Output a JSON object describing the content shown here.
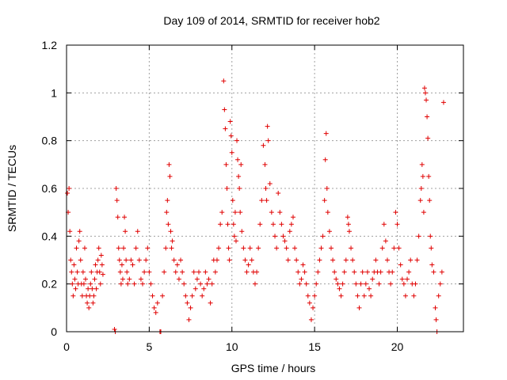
{
  "chart_data": {
    "type": "scatter",
    "title": "Day 109 of 2014, SRMTID for receiver hob2",
    "xlabel": "GPS time / hours",
    "ylabel": "SRMTID / TECUs",
    "xlim": [
      0,
      24
    ],
    "ylim": [
      0,
      1.2
    ],
    "x_ticks": [
      0,
      5,
      10,
      15,
      20
    ],
    "x_tick_labels": [
      "0",
      "5",
      "10",
      "15",
      "20"
    ],
    "y_ticks": [
      0,
      0.2,
      0.4,
      0.6,
      0.8,
      1,
      1.2
    ],
    "y_tick_labels": [
      "0",
      "0.2",
      "0.4",
      "0.6",
      "0.8",
      "1",
      "1.2"
    ],
    "grid": true,
    "marker": "+",
    "marker_color": "#e00000",
    "series": [
      {
        "name": "SRMTID",
        "points": [
          [
            0.05,
            0.58
          ],
          [
            0.1,
            0.5
          ],
          [
            0.15,
            0.6
          ],
          [
            0.2,
            0.42
          ],
          [
            0.25,
            0.3
          ],
          [
            0.3,
            0.25
          ],
          [
            0.35,
            0.2
          ],
          [
            0.4,
            0.15
          ],
          [
            0.45,
            0.28
          ],
          [
            0.5,
            0.22
          ],
          [
            0.55,
            0.18
          ],
          [
            0.6,
            0.35
          ],
          [
            0.65,
            0.25
          ],
          [
            0.7,
            0.2
          ],
          [
            0.75,
            0.38
          ],
          [
            0.8,
            0.42
          ],
          [
            0.85,
            0.3
          ],
          [
            0.9,
            0.2
          ],
          [
            0.95,
            0.15
          ],
          [
            1.0,
            0.25
          ],
          [
            1.05,
            0.2
          ],
          [
            1.1,
            0.35
          ],
          [
            1.15,
            0.22
          ],
          [
            1.2,
            0.15
          ],
          [
            1.25,
            0.12
          ],
          [
            1.3,
            0.18
          ],
          [
            1.35,
            0.1
          ],
          [
            1.4,
            0.15
          ],
          [
            1.45,
            0.2
          ],
          [
            1.5,
            0.25
          ],
          [
            1.55,
            0.18
          ],
          [
            1.6,
            0.12
          ],
          [
            1.65,
            0.15
          ],
          [
            1.7,
            0.22
          ],
          [
            1.75,
            0.28
          ],
          [
            1.8,
            0.18
          ],
          [
            1.85,
            0.25
          ],
          [
            1.9,
            0.3
          ],
          [
            1.95,
            0.35
          ],
          [
            2.0,
            0.25
          ],
          [
            2.05,
            0.2
          ],
          [
            2.1,
            0.32
          ],
          [
            2.15,
            0.28
          ],
          [
            2.2,
            0.24
          ],
          [
            2.9,
            0.01
          ],
          [
            2.95,
            0.0
          ],
          [
            3.0,
            0.6
          ],
          [
            3.05,
            0.55
          ],
          [
            3.1,
            0.48
          ],
          [
            3.15,
            0.35
          ],
          [
            3.2,
            0.3
          ],
          [
            3.25,
            0.25
          ],
          [
            3.3,
            0.2
          ],
          [
            3.35,
            0.28
          ],
          [
            3.4,
            0.22
          ],
          [
            3.45,
            0.35
          ],
          [
            3.5,
            0.48
          ],
          [
            3.55,
            0.42
          ],
          [
            3.6,
            0.3
          ],
          [
            3.65,
            0.25
          ],
          [
            3.7,
            0.2
          ],
          [
            3.8,
            0.22
          ],
          [
            3.9,
            0.3
          ],
          [
            4.0,
            0.28
          ],
          [
            4.1,
            0.2
          ],
          [
            4.2,
            0.35
          ],
          [
            4.3,
            0.42
          ],
          [
            4.4,
            0.3
          ],
          [
            4.5,
            0.22
          ],
          [
            4.6,
            0.2
          ],
          [
            4.7,
            0.25
          ],
          [
            4.8,
            0.3
          ],
          [
            4.9,
            0.35
          ],
          [
            5.0,
            0.25
          ],
          [
            5.1,
            0.2
          ],
          [
            5.2,
            0.15
          ],
          [
            5.3,
            0.1
          ],
          [
            5.4,
            0.08
          ],
          [
            5.5,
            0.12
          ],
          [
            5.65,
            0.0
          ],
          [
            5.7,
            0.0
          ],
          [
            5.8,
            0.15
          ],
          [
            5.9,
            0.25
          ],
          [
            6.0,
            0.35
          ],
          [
            6.05,
            0.5
          ],
          [
            6.1,
            0.55
          ],
          [
            6.15,
            0.45
          ],
          [
            6.2,
            0.7
          ],
          [
            6.25,
            0.65
          ],
          [
            6.3,
            0.42
          ],
          [
            6.35,
            0.35
          ],
          [
            6.4,
            0.38
          ],
          [
            6.5,
            0.3
          ],
          [
            6.6,
            0.25
          ],
          [
            6.7,
            0.28
          ],
          [
            6.8,
            0.22
          ],
          [
            6.9,
            0.3
          ],
          [
            7.0,
            0.25
          ],
          [
            7.1,
            0.2
          ],
          [
            7.2,
            0.15
          ],
          [
            7.3,
            0.12
          ],
          [
            7.4,
            0.05
          ],
          [
            7.5,
            0.1
          ],
          [
            7.6,
            0.15
          ],
          [
            7.7,
            0.25
          ],
          [
            7.8,
            0.18
          ],
          [
            7.9,
            0.22
          ],
          [
            8.0,
            0.25
          ],
          [
            8.1,
            0.2
          ],
          [
            8.2,
            0.15
          ],
          [
            8.3,
            0.18
          ],
          [
            8.4,
            0.25
          ],
          [
            8.5,
            0.2
          ],
          [
            8.6,
            0.22
          ],
          [
            8.7,
            0.12
          ],
          [
            8.8,
            0.2
          ],
          [
            8.9,
            0.3
          ],
          [
            9.0,
            0.25
          ],
          [
            9.1,
            0.3
          ],
          [
            9.2,
            0.35
          ],
          [
            9.3,
            0.45
          ],
          [
            9.4,
            0.5
          ],
          [
            9.5,
            1.05
          ],
          [
            9.55,
            0.93
          ],
          [
            9.6,
            0.85
          ],
          [
            9.65,
            0.7
          ],
          [
            9.7,
            0.6
          ],
          [
            9.75,
            0.45
          ],
          [
            9.8,
            0.35
          ],
          [
            9.85,
            0.3
          ],
          [
            9.9,
            0.88
          ],
          [
            9.95,
            0.82
          ],
          [
            10.0,
            0.75
          ],
          [
            10.05,
            0.55
          ],
          [
            10.1,
            0.45
          ],
          [
            10.15,
            0.4
          ],
          [
            10.2,
            0.5
          ],
          [
            10.25,
            0.38
          ],
          [
            10.3,
            0.8
          ],
          [
            10.35,
            0.72
          ],
          [
            10.4,
            0.65
          ],
          [
            10.45,
            0.6
          ],
          [
            10.5,
            0.5
          ],
          [
            10.55,
            0.7
          ],
          [
            10.6,
            0.42
          ],
          [
            10.7,
            0.35
          ],
          [
            10.8,
            0.3
          ],
          [
            10.9,
            0.25
          ],
          [
            11.0,
            0.28
          ],
          [
            11.1,
            0.35
          ],
          [
            11.2,
            0.3
          ],
          [
            11.3,
            0.25
          ],
          [
            11.4,
            0.2
          ],
          [
            11.5,
            0.25
          ],
          [
            11.6,
            0.35
          ],
          [
            11.7,
            0.45
          ],
          [
            11.8,
            0.55
          ],
          [
            11.9,
            0.78
          ],
          [
            12.0,
            0.7
          ],
          [
            12.05,
            0.6
          ],
          [
            12.1,
            0.55
          ],
          [
            12.15,
            0.86
          ],
          [
            12.2,
            0.8
          ],
          [
            12.3,
            0.62
          ],
          [
            12.4,
            0.5
          ],
          [
            12.5,
            0.45
          ],
          [
            12.6,
            0.4
          ],
          [
            12.7,
            0.35
          ],
          [
            12.8,
            0.58
          ],
          [
            12.9,
            0.5
          ],
          [
            13.0,
            0.45
          ],
          [
            13.1,
            0.4
          ],
          [
            13.2,
            0.38
          ],
          [
            13.3,
            0.35
          ],
          [
            13.4,
            0.3
          ],
          [
            13.5,
            0.42
          ],
          [
            13.6,
            0.45
          ],
          [
            13.7,
            0.48
          ],
          [
            13.8,
            0.35
          ],
          [
            13.9,
            0.3
          ],
          [
            14.0,
            0.25
          ],
          [
            14.1,
            0.2
          ],
          [
            14.2,
            0.22
          ],
          [
            14.3,
            0.28
          ],
          [
            14.4,
            0.25
          ],
          [
            14.5,
            0.2
          ],
          [
            14.6,
            0.15
          ],
          [
            14.7,
            0.12
          ],
          [
            14.8,
            0.05
          ],
          [
            14.9,
            0.1
          ],
          [
            15.0,
            0.15
          ],
          [
            15.1,
            0.2
          ],
          [
            15.2,
            0.25
          ],
          [
            15.3,
            0.3
          ],
          [
            15.4,
            0.35
          ],
          [
            15.5,
            0.4
          ],
          [
            15.6,
            0.55
          ],
          [
            15.65,
            0.72
          ],
          [
            15.7,
            0.83
          ],
          [
            15.75,
            0.6
          ],
          [
            15.8,
            0.5
          ],
          [
            15.9,
            0.42
          ],
          [
            16.0,
            0.35
          ],
          [
            16.1,
            0.3
          ],
          [
            16.2,
            0.25
          ],
          [
            16.3,
            0.22
          ],
          [
            16.4,
            0.2
          ],
          [
            16.5,
            0.18
          ],
          [
            16.6,
            0.15
          ],
          [
            16.7,
            0.2
          ],
          [
            16.8,
            0.25
          ],
          [
            16.9,
            0.3
          ],
          [
            17.0,
            0.48
          ],
          [
            17.05,
            0.45
          ],
          [
            17.1,
            0.42
          ],
          [
            17.2,
            0.35
          ],
          [
            17.3,
            0.3
          ],
          [
            17.4,
            0.25
          ],
          [
            17.5,
            0.2
          ],
          [
            17.6,
            0.15
          ],
          [
            17.7,
            0.1
          ],
          [
            17.8,
            0.2
          ],
          [
            17.9,
            0.25
          ],
          [
            18.0,
            0.15
          ],
          [
            18.1,
            0.2
          ],
          [
            18.2,
            0.25
          ],
          [
            18.3,
            0.18
          ],
          [
            18.4,
            0.15
          ],
          [
            18.5,
            0.22
          ],
          [
            18.6,
            0.25
          ],
          [
            18.7,
            0.3
          ],
          [
            18.8,
            0.25
          ],
          [
            18.9,
            0.2
          ],
          [
            19.0,
            0.25
          ],
          [
            19.1,
            0.35
          ],
          [
            19.2,
            0.45
          ],
          [
            19.3,
            0.38
          ],
          [
            19.4,
            0.3
          ],
          [
            19.5,
            0.25
          ],
          [
            19.6,
            0.2
          ],
          [
            19.7,
            0.25
          ],
          [
            19.8,
            0.35
          ],
          [
            19.9,
            0.5
          ],
          [
            20.0,
            0.45
          ],
          [
            20.1,
            0.35
          ],
          [
            20.2,
            0.28
          ],
          [
            20.3,
            0.22
          ],
          [
            20.4,
            0.2
          ],
          [
            20.5,
            0.15
          ],
          [
            20.6,
            0.22
          ],
          [
            20.7,
            0.25
          ],
          [
            20.8,
            0.3
          ],
          [
            20.9,
            0.2
          ],
          [
            21.0,
            0.15
          ],
          [
            21.1,
            0.2
          ],
          [
            21.2,
            0.3
          ],
          [
            21.3,
            0.4
          ],
          [
            21.4,
            0.55
          ],
          [
            21.45,
            0.6
          ],
          [
            21.5,
            0.7
          ],
          [
            21.55,
            0.65
          ],
          [
            21.6,
            0.5
          ],
          [
            21.65,
            1.02
          ],
          [
            21.7,
            1.0
          ],
          [
            21.75,
            0.97
          ],
          [
            21.8,
            0.9
          ],
          [
            21.85,
            0.81
          ],
          [
            21.9,
            0.65
          ],
          [
            21.95,
            0.55
          ],
          [
            22.0,
            0.4
          ],
          [
            22.05,
            0.35
          ],
          [
            22.1,
            0.28
          ],
          [
            22.2,
            0.25
          ],
          [
            22.3,
            0.1
          ],
          [
            22.35,
            0.05
          ],
          [
            22.4,
            0.0
          ],
          [
            22.5,
            0.15
          ],
          [
            22.6,
            0.2
          ],
          [
            22.7,
            0.25
          ],
          [
            22.8,
            0.96
          ]
        ]
      }
    ]
  }
}
